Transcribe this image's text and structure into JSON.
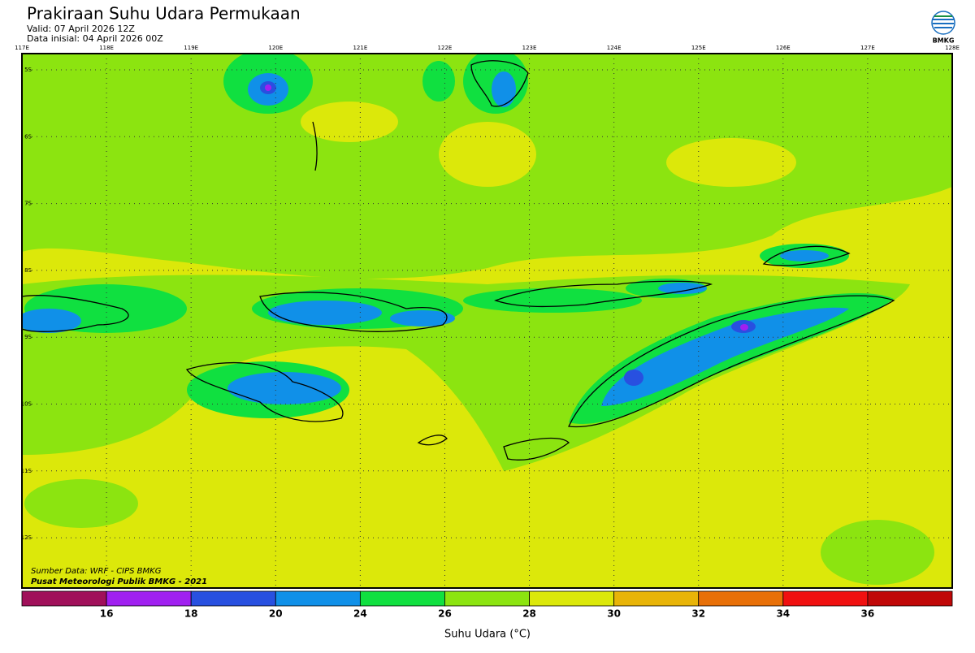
{
  "header": {
    "title": "Prakiraan Suhu Udara Permukaan",
    "valid": "Valid: 07 April 2026 12Z",
    "initial": "Data inisial: 04 April 2026 00Z"
  },
  "logo": {
    "label": "BMKG"
  },
  "map": {
    "longitudes": [
      "117E",
      "118E",
      "119E",
      "120E",
      "121E",
      "122E",
      "123E",
      "124E",
      "125E",
      "126E",
      "127E",
      "128E"
    ],
    "latitudes": [
      "5S",
      "6S",
      "7S",
      "8S",
      "9S",
      "10S",
      "11S",
      "12S"
    ],
    "credits": [
      "Sumber Data: WRF - CIPS BMKG",
      "Pusat Meteorologi Publik BMKG - 2021"
    ]
  },
  "legend": {
    "title": "Suhu Udara (°C)",
    "colors": [
      "#a0105a",
      "#a020f0",
      "#2850e0",
      "#1090e8",
      "#10e040",
      "#8ce410",
      "#dce80a",
      "#e8b408",
      "#e87008",
      "#f01010",
      "#c00808"
    ],
    "ticks": [
      16,
      18,
      20,
      24,
      26,
      28,
      30,
      32,
      34,
      36
    ]
  }
}
